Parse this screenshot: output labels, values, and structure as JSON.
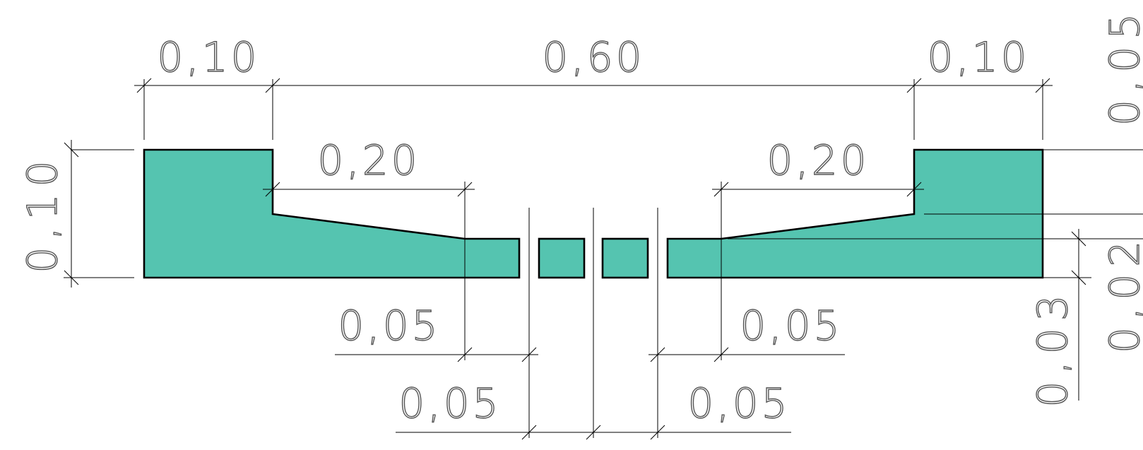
{
  "drawing": {
    "fill_color": "#55c4b0",
    "outline_color": "#000000",
    "dimensions": {
      "top_left_width": "0,10",
      "top_center_width": "0,60",
      "top_right_width": "0,10",
      "left_height": "0,10",
      "left_slope_width": "0,20",
      "right_slope_width": "0,20",
      "left_flat_width": "0,05",
      "right_flat_width": "0,05",
      "left_gap_width": "0,05",
      "right_gap_width": "0,05",
      "right_step_height": "0,03",
      "right_top_cut": "0,05",
      "right_bottom_cut": "0,02"
    }
  }
}
